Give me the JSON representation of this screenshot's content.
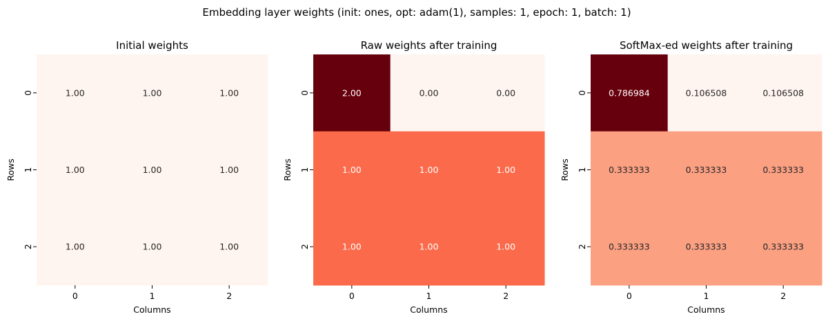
{
  "suptitle": "Embedding layer weights (init: ones, opt: adam(1), samples: 1, epoch: 1, batch: 1)",
  "chart_data": [
    {
      "type": "heatmap",
      "title": "Initial weights",
      "xlabel": "Columns",
      "ylabel": "Rows",
      "x_ticks": [
        "0",
        "1",
        "2"
      ],
      "y_ticks": [
        "0",
        "1",
        "2"
      ],
      "values": [
        [
          1.0,
          1.0,
          1.0
        ],
        [
          1.0,
          1.0,
          1.0
        ],
        [
          1.0,
          1.0,
          1.0
        ]
      ],
      "labels": [
        [
          "1.00",
          "1.00",
          "1.00"
        ],
        [
          "1.00",
          "1.00",
          "1.00"
        ],
        [
          "1.00",
          "1.00",
          "1.00"
        ]
      ],
      "cell_colors": [
        [
          "#fff5f0",
          "#fff5f0",
          "#fff5f0"
        ],
        [
          "#fff5f0",
          "#fff5f0",
          "#fff5f0"
        ],
        [
          "#fff5f0",
          "#fff5f0",
          "#fff5f0"
        ]
      ],
      "colormap": "Reds",
      "colorbar": false
    },
    {
      "type": "heatmap",
      "title": "Raw weights after training",
      "xlabel": "Columns",
      "ylabel": "Rows",
      "x_ticks": [
        "0",
        "1",
        "2"
      ],
      "y_ticks": [
        "0",
        "1",
        "2"
      ],
      "values": [
        [
          2.0,
          0.0,
          0.0
        ],
        [
          1.0,
          1.0,
          1.0
        ],
        [
          1.0,
          1.0,
          1.0
        ]
      ],
      "labels": [
        [
          "2.00",
          "0.00",
          "0.00"
        ],
        [
          "1.00",
          "1.00",
          "1.00"
        ],
        [
          "1.00",
          "1.00",
          "1.00"
        ]
      ],
      "cell_colors": [
        [
          "#67000d",
          "#fff5f0",
          "#fff5f0"
        ],
        [
          "#fb6a4a",
          "#fb6a4a",
          "#fb6a4a"
        ],
        [
          "#fb6a4a",
          "#fb6a4a",
          "#fb6a4a"
        ]
      ],
      "colormap": "Reds",
      "colorbar": false
    },
    {
      "type": "heatmap",
      "title": "SoftMax-ed weights after training",
      "xlabel": "Columns",
      "ylabel": "Rows",
      "x_ticks": [
        "0",
        "1",
        "2"
      ],
      "y_ticks": [
        "0",
        "1",
        "2"
      ],
      "values": [
        [
          0.786984,
          0.106508,
          0.106508
        ],
        [
          0.333333,
          0.333333,
          0.333333
        ],
        [
          0.333333,
          0.333333,
          0.333333
        ]
      ],
      "labels": [
        [
          "0.786984",
          "0.106508",
          "0.106508"
        ],
        [
          "0.333333",
          "0.333333",
          "0.333333"
        ],
        [
          "0.333333",
          "0.333333",
          "0.333333"
        ]
      ],
      "cell_colors": [
        [
          "#67000d",
          "#fff5f0",
          "#fff5f0"
        ],
        [
          "#fca082",
          "#fca082",
          "#fca082"
        ],
        [
          "#fca082",
          "#fca082",
          "#fca082"
        ]
      ],
      "colormap": "Reds",
      "colorbar": false
    }
  ]
}
